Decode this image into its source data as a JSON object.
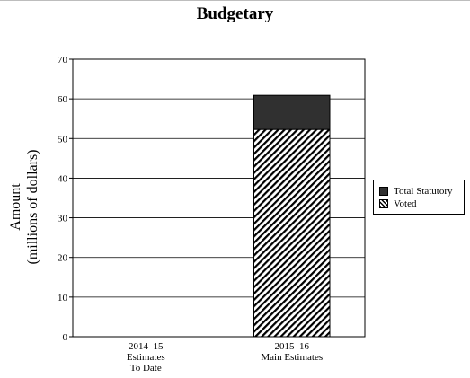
{
  "chart_data": {
    "type": "bar",
    "stacked": true,
    "title": "Budgetary",
    "ylabel_lines": [
      "Amount",
      "(millions of dollars)"
    ],
    "xlabel": "",
    "categories": [
      [
        "2014–15",
        "Estimates",
        "To Date"
      ],
      [
        "2015–16",
        "Main Estimates"
      ]
    ],
    "series": [
      {
        "name": "Voted",
        "values": [
          0,
          52.3
        ],
        "fill": "hatch",
        "color": "#000000"
      },
      {
        "name": "Total Statutory",
        "values": [
          0,
          8.6
        ],
        "fill": "solid",
        "color": "#303030"
      }
    ],
    "legend_order": [
      "Total Statutory",
      "Voted"
    ],
    "ylim": [
      0,
      70
    ],
    "yticks": [
      0,
      10,
      20,
      30,
      40,
      50,
      60,
      70
    ],
    "grid": true,
    "legend_position": "right"
  }
}
